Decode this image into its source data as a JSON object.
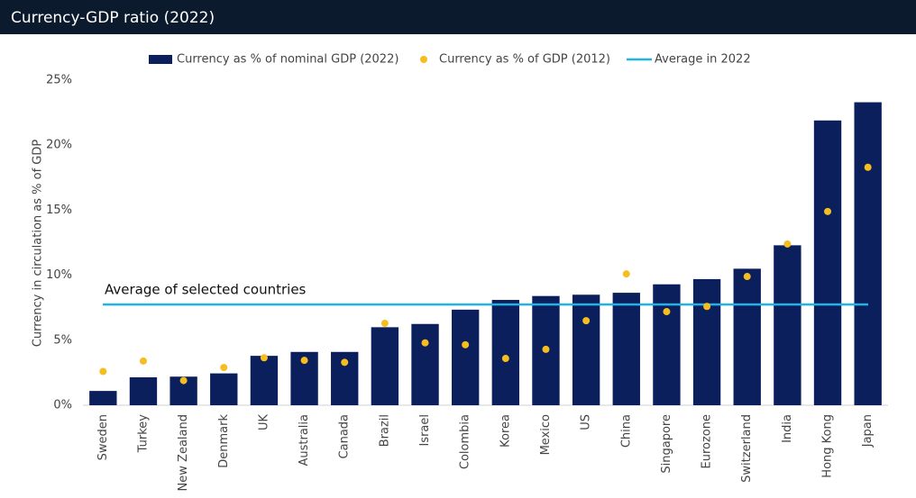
{
  "header": {
    "title": "Currency-GDP ratio (2022)"
  },
  "chart_data": {
    "type": "bar",
    "y_label": "Currency in circulation as % of GDP",
    "categories": [
      "Sweden",
      "Turkey",
      "New Zealand",
      "Denmark",
      "UK",
      "Australia",
      "Canada",
      "Brazil",
      "Israel",
      "Colombia",
      "Korea",
      "Mexico",
      "US",
      "China",
      "Singapore",
      "Eurozone",
      "Switzerland",
      "India",
      "Hong Kong",
      "Japan"
    ],
    "series": [
      {
        "name": "Currency as % of nominal GDP (2022)",
        "color": "#0a1f5c",
        "type": "bar",
        "values": [
          1.1,
          2.15,
          2.2,
          2.45,
          3.8,
          4.1,
          4.1,
          6.0,
          6.25,
          7.35,
          8.1,
          8.4,
          8.5,
          8.65,
          9.3,
          9.7,
          10.5,
          12.3,
          21.9,
          23.3
        ]
      },
      {
        "name": "Currency as % of GDP (2012)",
        "color": "#f5bd1f",
        "type": "scatter",
        "values": [
          2.6,
          3.4,
          1.9,
          2.9,
          3.65,
          3.45,
          3.3,
          6.3,
          4.8,
          4.65,
          3.6,
          4.3,
          6.5,
          10.1,
          7.2,
          7.6,
          9.9,
          12.4,
          14.9,
          18.3
        ]
      },
      {
        "name": "Average in 2022",
        "color": "#1fb3e6",
        "type": "hline",
        "value": 7.75,
        "annotation": "Average of selected countries"
      }
    ],
    "ylim": [
      0,
      25
    ],
    "yticks": [
      {
        "value": 0,
        "label": "0%"
      },
      {
        "value": 5,
        "label": "5%"
      },
      {
        "value": 10,
        "label": "10%"
      },
      {
        "value": 15,
        "label": "15%"
      },
      {
        "value": 20,
        "label": "20%"
      },
      {
        "value": 25,
        "label": "25%"
      }
    ],
    "grid": false
  }
}
